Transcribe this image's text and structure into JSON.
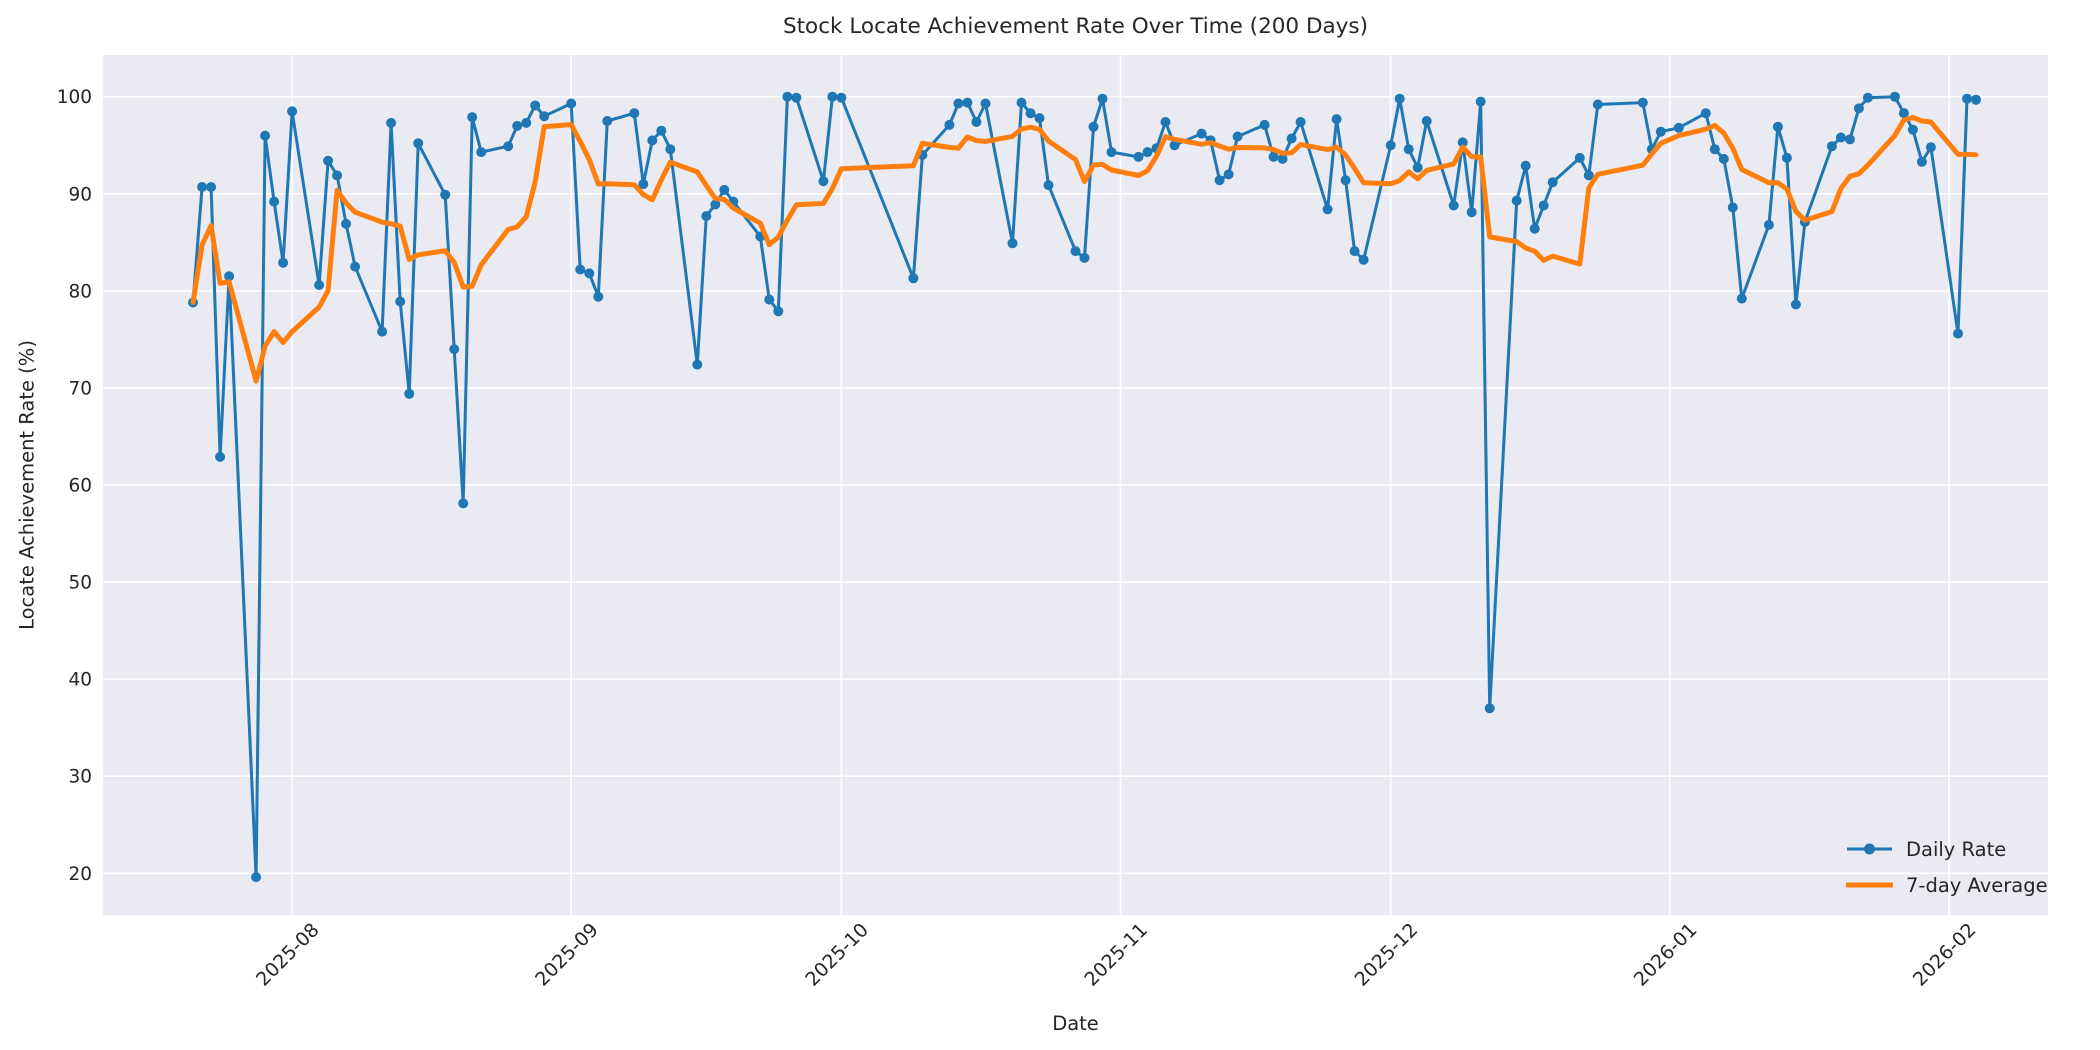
{
  "title": "Stock Locate Achievement Rate Over Time (200 Days)",
  "axes": {
    "xlabel": "Date",
    "ylabel": "Locate Achievement Rate (%)"
  },
  "legend": {
    "position": "lower right",
    "items": [
      {
        "label": "Daily Rate",
        "color": "#1f77b4",
        "marker": "circle"
      },
      {
        "label": "7-day Average",
        "color": "#ff7f0e",
        "marker": "none"
      }
    ]
  },
  "chart_data": {
    "type": "line",
    "title": "Stock Locate Achievement Rate Over Time (200 Days)",
    "xlabel": "Date",
    "ylabel": "Locate Achievement Rate (%)",
    "grid": true,
    "plot_bg": "#eaeaf2",
    "grid_color": "#ffffff",
    "text_color": "#262626",
    "legend_position": "lower right",
    "xlim": [
      "2025-07-11",
      "2026-02-12"
    ],
    "ylim": [
      15.7,
      104.3
    ],
    "y_ticks": [
      20,
      30,
      40,
      50,
      60,
      70,
      80,
      90,
      100
    ],
    "x_ticks": [
      {
        "label": "2025-08",
        "date": "2025-08-01"
      },
      {
        "label": "2025-09",
        "date": "2025-09-01"
      },
      {
        "label": "2025-10",
        "date": "2025-10-01"
      },
      {
        "label": "2025-11",
        "date": "2025-11-01"
      },
      {
        "label": "2025-12",
        "date": "2025-12-01"
      },
      {
        "label": "2026-01",
        "date": "2026-01-01"
      },
      {
        "label": "2026-02",
        "date": "2026-02-01"
      }
    ],
    "x": [
      "2025-07-21",
      "2025-07-22",
      "2025-07-23",
      "2025-07-24",
      "2025-07-25",
      "2025-07-28",
      "2025-07-29",
      "2025-07-30",
      "2025-07-31",
      "2025-08-01",
      "2025-08-04",
      "2025-08-05",
      "2025-08-06",
      "2025-08-07",
      "2025-08-08",
      "2025-08-11",
      "2025-08-12",
      "2025-08-13",
      "2025-08-14",
      "2025-08-15",
      "2025-08-18",
      "2025-08-19",
      "2025-08-20",
      "2025-08-21",
      "2025-08-22",
      "2025-08-25",
      "2025-08-26",
      "2025-08-27",
      "2025-08-28",
      "2025-08-29",
      "2025-09-01",
      "2025-09-02",
      "2025-09-03",
      "2025-09-04",
      "2025-09-05",
      "2025-09-08",
      "2025-09-09",
      "2025-09-10",
      "2025-09-11",
      "2025-09-12",
      "2025-09-15",
      "2025-09-16",
      "2025-09-17",
      "2025-09-18",
      "2025-09-19",
      "2025-09-22",
      "2025-09-23",
      "2025-09-24",
      "2025-09-25",
      "2025-09-26",
      "2025-09-29",
      "2025-09-30",
      "2025-10-01",
      "2025-10-09",
      "2025-10-10",
      "2025-10-13",
      "2025-10-14",
      "2025-10-15",
      "2025-10-16",
      "2025-10-17",
      "2025-10-20",
      "2025-10-21",
      "2025-10-22",
      "2025-10-23",
      "2025-10-24",
      "2025-10-27",
      "2025-10-28",
      "2025-10-29",
      "2025-10-30",
      "2025-10-31",
      "2025-11-03",
      "2025-11-04",
      "2025-11-05",
      "2025-11-06",
      "2025-11-07",
      "2025-11-10",
      "2025-11-11",
      "2025-11-12",
      "2025-11-13",
      "2025-11-14",
      "2025-11-17",
      "2025-11-18",
      "2025-11-19",
      "2025-11-20",
      "2025-11-21",
      "2025-11-24",
      "2025-11-25",
      "2025-11-26",
      "2025-11-27",
      "2025-11-28",
      "2025-12-01",
      "2025-12-02",
      "2025-12-03",
      "2025-12-04",
      "2025-12-05",
      "2025-12-08",
      "2025-12-09",
      "2025-12-10",
      "2025-12-11",
      "2025-12-12",
      "2025-12-15",
      "2025-12-16",
      "2025-12-17",
      "2025-12-18",
      "2025-12-19",
      "2025-12-22",
      "2025-12-23",
      "2025-12-24",
      "2025-12-29",
      "2025-12-30",
      "2025-12-31",
      "2026-01-02",
      "2026-01-05",
      "2026-01-06",
      "2026-01-07",
      "2026-01-08",
      "2026-01-09",
      "2026-01-12",
      "2026-01-13",
      "2026-01-14",
      "2026-01-15",
      "2026-01-16",
      "2026-01-19",
      "2026-01-20",
      "2026-01-21",
      "2026-01-22",
      "2026-01-23",
      "2026-01-26",
      "2026-01-27",
      "2026-01-28",
      "2026-01-29",
      "2026-01-30",
      "2026-02-02",
      "2026-02-03",
      "2026-02-04"
    ],
    "series": [
      {
        "name": "Daily Rate",
        "color": "#1f77b4",
        "marker": "o",
        "marker_size": 5,
        "line_width": 3,
        "values": [
          78.8,
          90.7,
          90.7,
          62.9,
          81.5,
          19.6,
          96.0,
          89.2,
          82.9,
          98.5,
          80.6,
          93.4,
          91.9,
          86.9,
          82.5,
          75.8,
          97.3,
          78.9,
          69.4,
          95.2,
          89.9,
          74.0,
          58.1,
          97.9,
          94.3,
          94.9,
          97.0,
          97.3,
          99.1,
          98.0,
          99.3,
          82.2,
          81.8,
          79.4,
          97.5,
          98.3,
          91.0,
          95.5,
          96.5,
          94.6,
          72.4,
          87.7,
          88.9,
          90.4,
          89.2,
          85.6,
          79.1,
          77.9,
          100.0,
          99.9,
          91.3,
          100.0,
          99.9,
          81.3,
          94.0,
          97.1,
          99.3,
          99.4,
          97.4,
          99.3,
          84.9,
          99.4,
          98.3,
          97.8,
          90.9,
          84.1,
          83.4,
          96.9,
          99.8,
          94.3,
          93.8,
          94.3,
          94.7,
          97.4,
          95.0,
          96.2,
          95.5,
          91.4,
          92.0,
          95.9,
          97.1,
          93.8,
          93.6,
          95.7,
          97.4,
          88.4,
          97.7,
          91.4,
          84.1,
          83.2,
          95.0,
          99.8,
          94.6,
          92.7,
          97.5,
          88.8,
          95.3,
          88.1,
          99.5,
          37.0,
          89.3,
          92.9,
          86.4,
          88.8,
          91.2,
          93.7,
          91.9,
          99.2,
          99.4,
          94.6,
          96.4,
          96.8,
          98.3,
          94.6,
          93.6,
          88.6,
          79.2,
          86.8,
          96.9,
          93.7,
          78.6,
          87.1,
          94.9,
          95.8,
          95.6,
          98.8,
          99.9,
          100.0,
          98.3,
          96.6,
          93.3,
          94.8,
          75.6,
          99.8,
          99.7
        ]
      },
      {
        "name": "7-day Average",
        "color": "#ff7f0e",
        "marker": "none",
        "line_width": 5,
        "derived": "trailing_mean_of_last_7_points_min_periods_1",
        "source_series": "Daily Rate"
      }
    ]
  }
}
